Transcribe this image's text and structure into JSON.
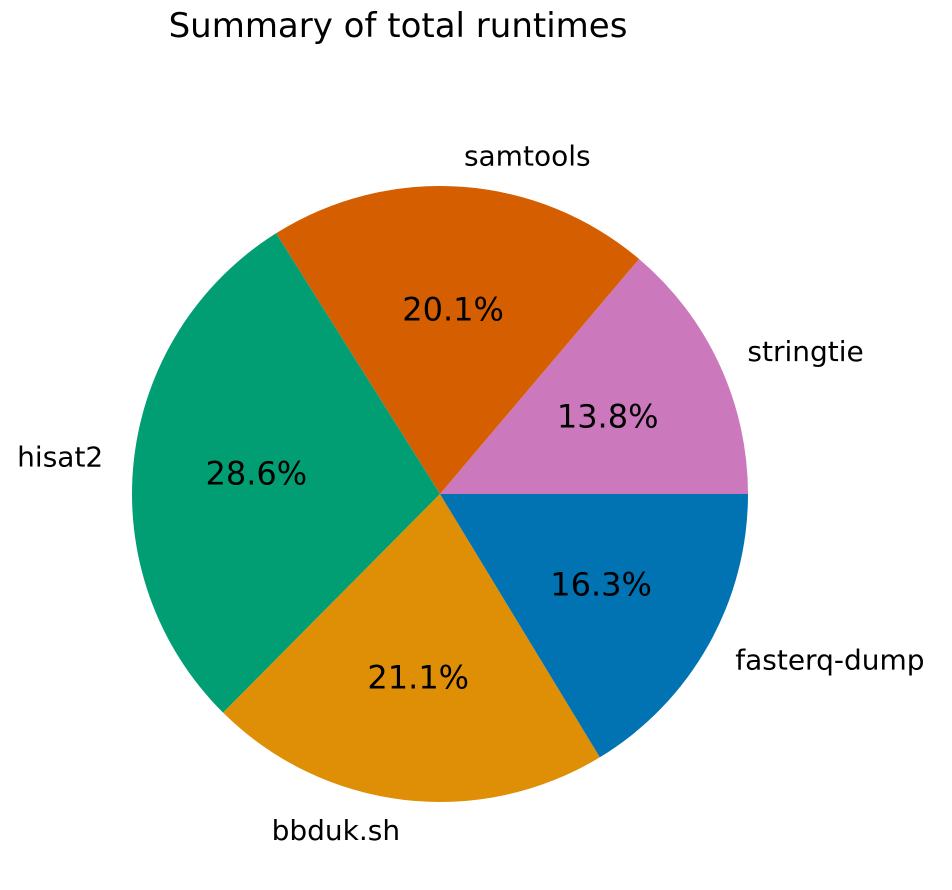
{
  "chart_data": {
    "type": "pie",
    "title": "Summary of total runtimes",
    "slices": [
      {
        "label": "stringtie",
        "value": 13.8,
        "pct_text": "13.8%",
        "color": "#CC78BC"
      },
      {
        "label": "samtools",
        "value": 20.1,
        "pct_text": "20.1%",
        "color": "#D55E00"
      },
      {
        "label": "hisat2",
        "value": 28.6,
        "pct_text": "28.6%",
        "color": "#029E73"
      },
      {
        "label": "bbduk.sh",
        "value": 21.1,
        "pct_text": "21.1%",
        "color": "#DE8F05"
      },
      {
        "label": "fasterq-dump",
        "value": 16.3,
        "pct_text": "16.3%",
        "color": "#0173B2"
      }
    ],
    "start_angle_deg": 0,
    "direction": "counterclockwise"
  }
}
